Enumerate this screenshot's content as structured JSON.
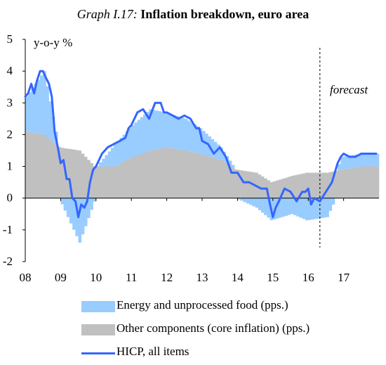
{
  "title": {
    "prefix": "Graph I.17:",
    "main": "Inflation breakdown, euro area"
  },
  "colors": {
    "energy": "#99CCFF",
    "core": "#C0C0C0",
    "hicp": "#3366FF",
    "axis": "#000000"
  },
  "chart_data": {
    "type": "bar",
    "yunit": "y-o-y %",
    "ylim": [
      -2,
      5
    ],
    "yticks": [
      -2,
      -1,
      0,
      1,
      2,
      3,
      4,
      5
    ],
    "xlim": [
      2008,
      2018
    ],
    "xticks": [
      "08",
      "09",
      "10",
      "11",
      "12",
      "13",
      "14",
      "15",
      "16",
      "17"
    ],
    "forecast_start": 2016.33,
    "forecast_label": "forecast",
    "legend": [
      {
        "key": "energy",
        "label": "Energy and unprocessed food (pps.)",
        "kind": "bar"
      },
      {
        "key": "core",
        "label": "Other components (core inflation) (pps.)",
        "kind": "bar"
      },
      {
        "key": "hicp",
        "label": "HICP, all items",
        "kind": "line"
      }
    ],
    "series": [
      {
        "key": "hicp",
        "name": "HICP, all items",
        "x": [
          2008.0,
          2008.08,
          2008.17,
          2008.25,
          2008.33,
          2008.42,
          2008.5,
          2008.58,
          2008.67,
          2008.75,
          2008.83,
          2008.92,
          2009.0,
          2009.08,
          2009.17,
          2009.25,
          2009.33,
          2009.42,
          2009.5,
          2009.58,
          2009.67,
          2009.75,
          2009.83,
          2009.92,
          2010.0,
          2010.17,
          2010.33,
          2010.5,
          2010.67,
          2010.83,
          2010.92,
          2011.0,
          2011.17,
          2011.33,
          2011.5,
          2011.67,
          2011.83,
          2011.92,
          2012.0,
          2012.17,
          2012.33,
          2012.5,
          2012.67,
          2012.83,
          2012.92,
          2013.0,
          2013.17,
          2013.33,
          2013.5,
          2013.67,
          2013.83,
          2013.92,
          2014.0,
          2014.17,
          2014.33,
          2014.5,
          2014.67,
          2014.83,
          2014.92,
          2015.0,
          2015.08,
          2015.17,
          2015.33,
          2015.5,
          2015.67,
          2015.83,
          2015.92,
          2016.0,
          2016.08,
          2016.17,
          2016.33,
          2016.5,
          2016.67,
          2016.83,
          2016.92,
          2017.0,
          2017.17,
          2017.33,
          2017.5,
          2017.67,
          2017.83,
          2017.92
        ],
        "values": [
          3.2,
          3.3,
          3.6,
          3.3,
          3.7,
          4.0,
          4.0,
          3.8,
          3.6,
          3.2,
          2.1,
          1.6,
          1.1,
          1.2,
          0.6,
          0.6,
          0.0,
          -0.1,
          -0.6,
          -0.2,
          -0.3,
          -0.1,
          0.5,
          0.9,
          1.0,
          1.4,
          1.6,
          1.7,
          1.8,
          1.9,
          2.2,
          2.3,
          2.7,
          2.8,
          2.5,
          3.0,
          3.0,
          2.7,
          2.7,
          2.6,
          2.5,
          2.6,
          2.5,
          2.2,
          2.2,
          1.8,
          1.7,
          1.4,
          1.6,
          1.3,
          0.8,
          0.8,
          0.8,
          0.5,
          0.5,
          0.4,
          0.3,
          0.3,
          -0.2,
          -0.6,
          -0.3,
          -0.1,
          0.3,
          0.2,
          -0.1,
          0.2,
          0.2,
          0.3,
          -0.2,
          0.0,
          -0.1,
          0.2,
          0.5,
          1.1,
          1.3,
          1.4,
          1.3,
          1.3,
          1.4,
          1.4,
          1.4,
          1.4
        ]
      },
      {
        "key": "core",
        "name": "Other components (core inflation) (pps.)",
        "x": [
          2008.0,
          2008.5,
          2008.92,
          2009.5,
          2009.92,
          2010.5,
          2011.0,
          2011.5,
          2011.92,
          2012.5,
          2012.92,
          2013.5,
          2013.92,
          2014.5,
          2014.92,
          2015.5,
          2015.92,
          2016.5,
          2016.92,
          2017.5,
          2017.92
        ],
        "values": [
          2.1,
          2.0,
          1.6,
          1.5,
          1.0,
          1.0,
          1.3,
          1.5,
          1.6,
          1.5,
          1.4,
          1.2,
          0.9,
          0.8,
          0.5,
          0.7,
          0.8,
          0.8,
          0.9,
          1.0,
          1.0
        ]
      },
      {
        "key": "energy",
        "name": "Energy and unprocessed food (pps.)",
        "x": [
          2008.0,
          2008.5,
          2008.92,
          2009.5,
          2009.92,
          2010.5,
          2011.0,
          2011.5,
          2011.92,
          2012.5,
          2012.92,
          2013.5,
          2013.92,
          2014.5,
          2014.92,
          2015.5,
          2015.92,
          2016.5,
          2016.92,
          2017.5,
          2017.92
        ],
        "values": [
          1.1,
          2.0,
          0.0,
          -1.4,
          -0.1,
          0.7,
          1.0,
          1.3,
          1.1,
          1.0,
          0.8,
          0.4,
          0.0,
          -0.3,
          -0.7,
          -0.5,
          -0.7,
          -0.6,
          0.4,
          0.4,
          0.4
        ]
      }
    ]
  }
}
